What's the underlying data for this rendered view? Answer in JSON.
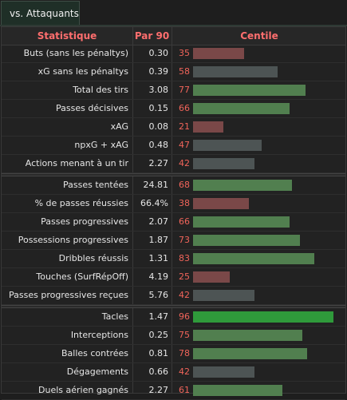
{
  "tab": {
    "label": "vs. Attaquants"
  },
  "header": {
    "stat": "Statistique",
    "p90": "Par 90",
    "centile": "Centile"
  },
  "colors": {
    "low": "#7a4848",
    "mid": "#4d5454",
    "high": "#517f4f",
    "top": "#2f9a3b",
    "percentile_text": "#f0645a",
    "header_text": "#ff6e6e"
  },
  "groups": [
    {
      "rows": [
        {
          "label": "Buts (sans les pénaltys)",
          "value": "0.30",
          "percentile": 35
        },
        {
          "label": "xG sans les pénaltys",
          "value": "0.39",
          "percentile": 58
        },
        {
          "label": "Total des tirs",
          "value": "3.08",
          "percentile": 77
        },
        {
          "label": "Passes décisives",
          "value": "0.15",
          "percentile": 66
        },
        {
          "label": "xAG",
          "value": "0.08",
          "percentile": 21
        },
        {
          "label": "npxG + xAG",
          "value": "0.48",
          "percentile": 47
        },
        {
          "label": "Actions menant à un tir",
          "value": "2.27",
          "percentile": 42
        }
      ]
    },
    {
      "rows": [
        {
          "label": "Passes tentées",
          "value": "24.81",
          "percentile": 68
        },
        {
          "label": "% de passes réussies",
          "value": "66.4%",
          "percentile": 38
        },
        {
          "label": "Passes progressives",
          "value": "2.07",
          "percentile": 66
        },
        {
          "label": "Possessions progressives",
          "value": "1.87",
          "percentile": 73
        },
        {
          "label": "Dribbles réussis",
          "value": "1.31",
          "percentile": 83
        },
        {
          "label": "Touches (SurfRépOff)",
          "value": "4.19",
          "percentile": 25
        },
        {
          "label": "Passes progressives reçues",
          "value": "5.76",
          "percentile": 42
        }
      ]
    },
    {
      "rows": [
        {
          "label": "Tacles",
          "value": "1.47",
          "percentile": 96
        },
        {
          "label": "Interceptions",
          "value": "0.25",
          "percentile": 75
        },
        {
          "label": "Balles contrées",
          "value": "0.81",
          "percentile": 78
        },
        {
          "label": "Dégagements",
          "value": "0.66",
          "percentile": 42
        },
        {
          "label": "Duels aérien gagnés",
          "value": "2.27",
          "percentile": 61
        }
      ]
    }
  ]
}
